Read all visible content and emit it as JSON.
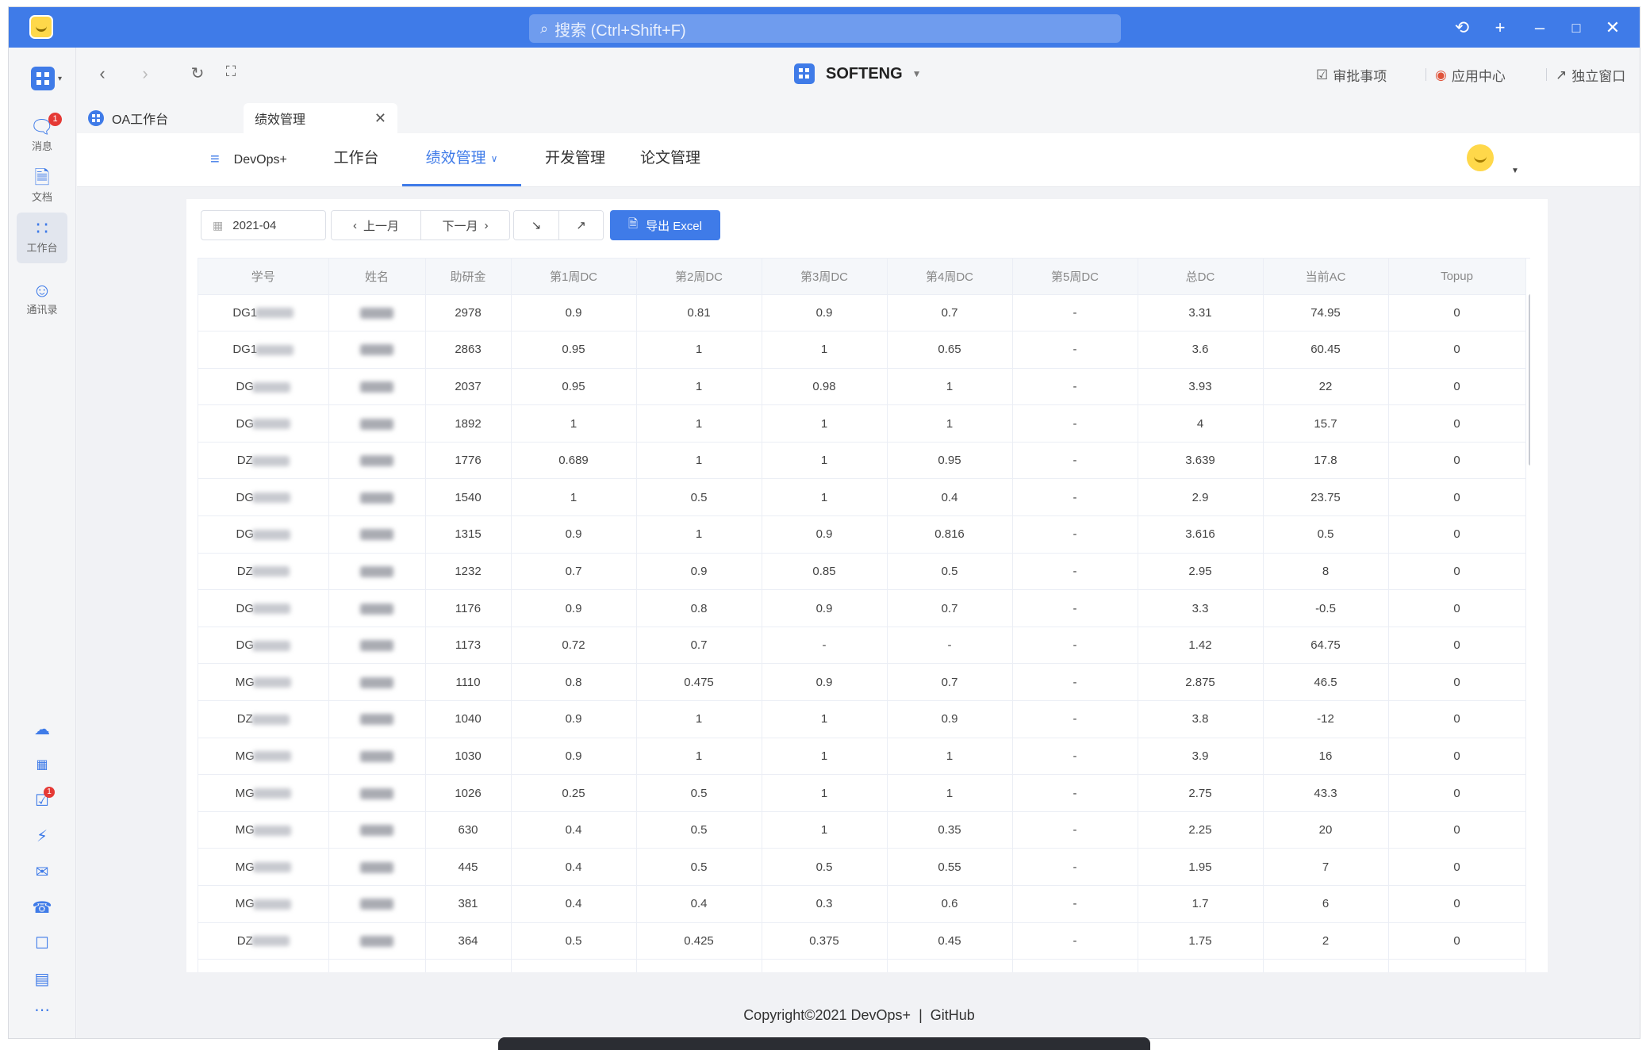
{
  "titlebar": {
    "search_placeholder": "搜索 (Ctrl+Shift+F)",
    "accent": "#3f7be8"
  },
  "sidebar": {
    "items": [
      {
        "label": "消息",
        "icon": "message-icon",
        "badge": "1"
      },
      {
        "label": "文档",
        "icon": "document-icon"
      },
      {
        "label": "工作台",
        "icon": "workbench-icon",
        "active": true
      },
      {
        "label": "通讯录",
        "icon": "contacts-icon"
      }
    ],
    "tools": [
      {
        "icon": "cloud-icon"
      },
      {
        "icon": "calendar-icon"
      },
      {
        "icon": "task-icon",
        "badge": "1"
      },
      {
        "icon": "lightning-icon"
      },
      {
        "icon": "mail-icon"
      },
      {
        "icon": "phone-icon"
      },
      {
        "icon": "inbox-icon"
      },
      {
        "icon": "folder-icon"
      },
      {
        "icon": "more-icon"
      }
    ]
  },
  "navbar": {
    "brand": "SOFTENG",
    "approval": "审批事项",
    "app_center": "应用中心",
    "standalone": "独立窗口"
  },
  "tabs": [
    {
      "label": "OA工作台"
    },
    {
      "label": "绩效管理",
      "active": true
    }
  ],
  "appbar": {
    "brand": "DevOps+",
    "menus": [
      "工作台",
      "绩效管理",
      "开发管理",
      "论文管理"
    ],
    "active_menu": "绩效管理"
  },
  "toolbar": {
    "month": "2021-04",
    "prev": "上一月",
    "next": "下一月",
    "export": "导出 Excel"
  },
  "table": {
    "columns": [
      "学号",
      "姓名",
      "助研金",
      "第1周DC",
      "第2周DC",
      "第3周DC",
      "第4周DC",
      "第5周DC",
      "总DC",
      "当前AC",
      "Topup"
    ],
    "rows": [
      {
        "id": "DG1",
        "amount": "2978",
        "w1": "0.9",
        "w2": "0.81",
        "w3": "0.9",
        "w4": "0.7",
        "w5": "-",
        "total": "3.31",
        "ac": "74.95",
        "topup": "0"
      },
      {
        "id": "DG1",
        "amount": "2863",
        "w1": "0.95",
        "w2": "1",
        "w3": "1",
        "w4": "0.65",
        "w5": "-",
        "total": "3.6",
        "ac": "60.45",
        "topup": "0"
      },
      {
        "id": "DG",
        "amount": "2037",
        "w1": "0.95",
        "w2": "1",
        "w3": "0.98",
        "w4": "1",
        "w5": "-",
        "total": "3.93",
        "ac": "22",
        "topup": "0"
      },
      {
        "id": "DG",
        "amount": "1892",
        "w1": "1",
        "w2": "1",
        "w3": "1",
        "w4": "1",
        "w5": "-",
        "total": "4",
        "ac": "15.7",
        "topup": "0"
      },
      {
        "id": "DZ",
        "amount": "1776",
        "w1": "0.689",
        "w2": "1",
        "w3": "1",
        "w4": "0.95",
        "w5": "-",
        "total": "3.639",
        "ac": "17.8",
        "topup": "0"
      },
      {
        "id": "DG",
        "amount": "1540",
        "w1": "1",
        "w2": "0.5",
        "w3": "1",
        "w4": "0.4",
        "w5": "-",
        "total": "2.9",
        "ac": "23.75",
        "topup": "0"
      },
      {
        "id": "DG",
        "amount": "1315",
        "w1": "0.9",
        "w2": "1",
        "w3": "0.9",
        "w4": "0.816",
        "w5": "-",
        "total": "3.616",
        "ac": "0.5",
        "topup": "0"
      },
      {
        "id": "DZ",
        "amount": "1232",
        "w1": "0.7",
        "w2": "0.9",
        "w3": "0.85",
        "w4": "0.5",
        "w5": "-",
        "total": "2.95",
        "ac": "8",
        "topup": "0"
      },
      {
        "id": "DG",
        "amount": "1176",
        "w1": "0.9",
        "w2": "0.8",
        "w3": "0.9",
        "w4": "0.7",
        "w5": "-",
        "total": "3.3",
        "ac": "-0.5",
        "topup": "0"
      },
      {
        "id": "DG",
        "amount": "1173",
        "w1": "0.72",
        "w2": "0.7",
        "w3": "-",
        "w4": "-",
        "w5": "-",
        "total": "1.42",
        "ac": "64.75",
        "topup": "0"
      },
      {
        "id": "MG",
        "amount": "1110",
        "w1": "0.8",
        "w2": "0.475",
        "w3": "0.9",
        "w4": "0.7",
        "w5": "-",
        "total": "2.875",
        "ac": "46.5",
        "topup": "0"
      },
      {
        "id": "DZ",
        "amount": "1040",
        "w1": "0.9",
        "w2": "1",
        "w3": "1",
        "w4": "0.9",
        "w5": "-",
        "total": "3.8",
        "ac": "-12",
        "topup": "0"
      },
      {
        "id": "MG",
        "amount": "1030",
        "w1": "0.9",
        "w2": "1",
        "w3": "1",
        "w4": "1",
        "w5": "-",
        "total": "3.9",
        "ac": "16",
        "topup": "0"
      },
      {
        "id": "MG",
        "amount": "1026",
        "w1": "0.25",
        "w2": "0.5",
        "w3": "1",
        "w4": "1",
        "w5": "-",
        "total": "2.75",
        "ac": "43.3",
        "topup": "0"
      },
      {
        "id": "MG",
        "amount": "630",
        "w1": "0.4",
        "w2": "0.5",
        "w3": "1",
        "w4": "0.35",
        "w5": "-",
        "total": "2.25",
        "ac": "20",
        "topup": "0"
      },
      {
        "id": "MG",
        "amount": "445",
        "w1": "0.4",
        "w2": "0.5",
        "w3": "0.5",
        "w4": "0.55",
        "w5": "-",
        "total": "1.95",
        "ac": "7",
        "topup": "0"
      },
      {
        "id": "MG",
        "amount": "381",
        "w1": "0.4",
        "w2": "0.4",
        "w3": "0.3",
        "w4": "0.6",
        "w5": "-",
        "total": "1.7",
        "ac": "6",
        "topup": "0"
      },
      {
        "id": "DZ",
        "amount": "364",
        "w1": "0.5",
        "w2": "0.425",
        "w3": "0.375",
        "w4": "0.45",
        "w5": "-",
        "total": "1.75",
        "ac": "2",
        "topup": "0"
      }
    ]
  },
  "footer": {
    "copyright": "Copyright©2021 DevOps+",
    "separator": "|",
    "link": "GitHub"
  }
}
